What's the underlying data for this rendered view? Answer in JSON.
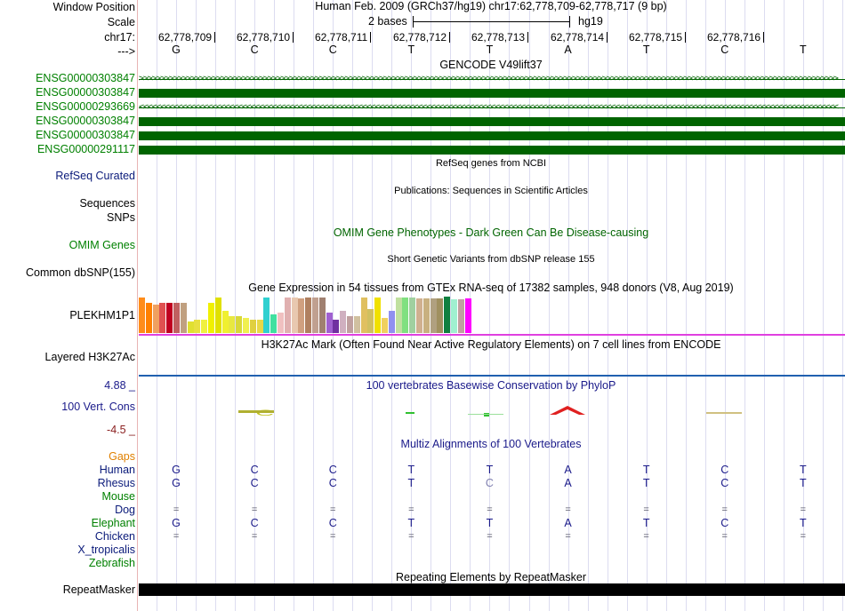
{
  "colors": {
    "gene_green": "#006400",
    "ensg_label": "#008000",
    "navy": "#0a1a7a",
    "orange": "#e08000",
    "conservation_max": "#1a1a8a",
    "conservation_min": "#8b2020",
    "repeat_black": "#000000",
    "magenta": "#e040e0",
    "blue_line": "#2060b0"
  },
  "header": {
    "window_position_label": "Window Position",
    "window_position_value": "Human Feb. 2009 (GRCh37/hg19)   chr17:62,778,709-62,778,717 (9 bp)",
    "scale_label": "Scale",
    "scale_left": "2 bases",
    "scale_right": "hg19",
    "chrom_label": "chr17:",
    "strand_label": "--->",
    "positions": [
      "62,778,709",
      "62,778,710",
      "62,778,711",
      "62,778,712",
      "62,778,713",
      "62,778,714",
      "62,778,715",
      "62,778,716"
    ]
  },
  "sequence_bases": [
    "G",
    "C",
    "C",
    "T",
    "T",
    "A",
    "T",
    "C",
    "T"
  ],
  "gencode": {
    "title": "GENCODE V49lift37",
    "transcripts": [
      {
        "id": "ENSG00000303847",
        "style": "arrows-right"
      },
      {
        "id": "ENSG00000303847",
        "style": "bar"
      },
      {
        "id": "ENSG00000293669",
        "style": "arrows-left"
      },
      {
        "id": "ENSG00000303847",
        "style": "bar"
      },
      {
        "id": "ENSG00000303847",
        "style": "bar"
      },
      {
        "id": "ENSG00000291117",
        "style": "bar"
      }
    ],
    "right_arrows": ">>>>>>>>>>>>>>>>>>>>>>>>>>>>>>>>>>>>>>>>>>>>>>>>>>>>>>>>>>>>>>>>>>>>>>>>>>>>>>>>>>>>>>>>>>>>>>>>>>>>>>>>>>>>>>>>>>>>>>>>>>>>>>>>>>>>>>>>>>>>>>>>>>>>>>>>>>>>>>>>>>>",
    "left_arrows": "<<<<<<<<<<<<<<<<<<<<<<<<<<<<<<<<<<<<<<<<<<<<<<<<<<<<<<<<<<<<<<<<<<<<<<<<<<<<<<<<<<<<<<<<<<<<<<<<<<<<<<<<<<<<<<<<<<<<<<<<<<<<<<<<<<<<<<<<<<<<<<<<<<<<<<<<<<<<<<<<<<<"
  },
  "refseq": {
    "label": "RefSeq Curated",
    "title": "RefSeq genes from NCBI"
  },
  "publications": {
    "title": "Publications: Sequences in Scientific Articles",
    "sequences_label": "Sequences",
    "snps_label": "SNPs"
  },
  "omim": {
    "label": "OMIM Genes",
    "title": "OMIM Gene Phenotypes - Dark Green Can Be Disease-causing"
  },
  "dbsnp": {
    "label": "Common dbSNP(155)",
    "title": "Short Genetic Variants from dbSNP release 155"
  },
  "gtex": {
    "title": "Gene Expression in 54 tissues from GTEx RNA-seq of 17382 samples, 948 donors (V8, Aug 2019)",
    "label": "PLEKHM1P1",
    "bars": [
      {
        "c": "#ff8c1a",
        "v": 0.95
      },
      {
        "c": "#ff8000",
        "v": 0.8
      },
      {
        "c": "#f0a060",
        "v": 0.75
      },
      {
        "c": "#e05050",
        "v": 0.82
      },
      {
        "c": "#c00020",
        "v": 0.82
      },
      {
        "c": "#c06060",
        "v": 0.82
      },
      {
        "c": "#c0a080",
        "v": 0.82
      },
      {
        "c": "#e0e030",
        "v": 0.3
      },
      {
        "c": "#e8e040",
        "v": 0.35
      },
      {
        "c": "#f0f040",
        "v": 0.35
      },
      {
        "c": "#f0f000",
        "v": 0.8
      },
      {
        "c": "#e0e000",
        "v": 0.95
      },
      {
        "c": "#f0f030",
        "v": 0.6
      },
      {
        "c": "#e8e840",
        "v": 0.45
      },
      {
        "c": "#d8d838",
        "v": 0.45
      },
      {
        "c": "#f0f050",
        "v": 0.4
      },
      {
        "c": "#e0d040",
        "v": 0.35
      },
      {
        "c": "#e8d848",
        "v": 0.35
      },
      {
        "c": "#30d0d0",
        "v": 0.95
      },
      {
        "c": "#40e0a0",
        "v": 0.5
      },
      {
        "c": "#f0c0c0",
        "v": 0.55
      },
      {
        "c": "#e0b0b0",
        "v": 0.95
      },
      {
        "c": "#e8c8b0",
        "v": 0.95
      },
      {
        "c": "#d0a080",
        "v": 0.92
      },
      {
        "c": "#b08060",
        "v": 0.95
      },
      {
        "c": "#c0a090",
        "v": 0.95
      },
      {
        "c": "#a08070",
        "v": 0.95
      },
      {
        "c": "#a060d0",
        "v": 0.55
      },
      {
        "c": "#7030a0",
        "v": 0.35
      },
      {
        "c": "#d0b0c0",
        "v": 0.6
      },
      {
        "c": "#c0a0a0",
        "v": 0.45
      },
      {
        "c": "#d0c0a0",
        "v": 0.45
      },
      {
        "c": "#e0c060",
        "v": 0.95
      },
      {
        "c": "#d0c060",
        "v": 0.65
      },
      {
        "c": "#f0e000",
        "v": 0.95
      },
      {
        "c": "#f0d060",
        "v": 0.4
      },
      {
        "c": "#9090f0",
        "v": 0.6
      },
      {
        "c": "#c0e0a0",
        "v": 0.95
      },
      {
        "c": "#80e080",
        "v": 0.95
      },
      {
        "c": "#a0d0a0",
        "v": 0.95
      },
      {
        "c": "#d0b090",
        "v": 0.92
      },
      {
        "c": "#c8b080",
        "v": 0.92
      },
      {
        "c": "#b0a080",
        "v": 0.92
      },
      {
        "c": "#a09060",
        "v": 0.92
      },
      {
        "c": "#108040",
        "v": 0.98
      },
      {
        "c": "#a0f0d0",
        "v": 0.9
      },
      {
        "c": "#c0a0a0",
        "v": 0.9
      },
      {
        "c": "#ff00ff",
        "v": 0.92
      }
    ]
  },
  "h3k27ac": {
    "label": "Layered H3K27Ac",
    "title": "H3K27Ac Mark (Often Found Near Active Regulatory Elements) on 7 cell lines from ENCODE"
  },
  "phylop": {
    "title": "100 vertebrates Basewise Conservation by PhyloP",
    "label": "100 Vert. Cons",
    "max": "4.88 _",
    "min": "-4.5 _"
  },
  "multiz": {
    "title": "Multiz Alignments of 100 Vertebrates",
    "gaps_label": "Gaps",
    "species": [
      {
        "name": "Human",
        "bases": [
          "G",
          "C",
          "C",
          "T",
          "T",
          "A",
          "T",
          "C",
          "T"
        ]
      },
      {
        "name": "Rhesus",
        "bases": [
          "G",
          "C",
          "C",
          "T",
          "C",
          "A",
          "T",
          "C",
          "T"
        ]
      },
      {
        "name": "Mouse",
        "bases": [
          "",
          "",
          "",
          "",
          "",
          "",
          "",
          "",
          ""
        ]
      },
      {
        "name": "Dog",
        "bases": [
          "=",
          "=",
          "=",
          "=",
          "=",
          "=",
          "=",
          "=",
          "="
        ]
      },
      {
        "name": "Elephant",
        "bases": [
          "G",
          "C",
          "C",
          "T",
          "T",
          "A",
          "T",
          "C",
          "T"
        ]
      },
      {
        "name": "Chicken",
        "bases": [
          "=",
          "=",
          "=",
          "=",
          "=",
          "=",
          "=",
          "=",
          "="
        ]
      },
      {
        "name": "X_tropicalis",
        "bases": [
          "",
          "",
          "",
          "",
          "",
          "",
          "",
          "",
          ""
        ]
      },
      {
        "name": "Zebrafish",
        "bases": [
          "",
          "",
          "",
          "",
          "",
          "",
          "",
          "",
          ""
        ]
      }
    ]
  },
  "repeatmasker": {
    "title": "Repeating Elements by RepeatMasker",
    "label": "RepeatMasker"
  }
}
